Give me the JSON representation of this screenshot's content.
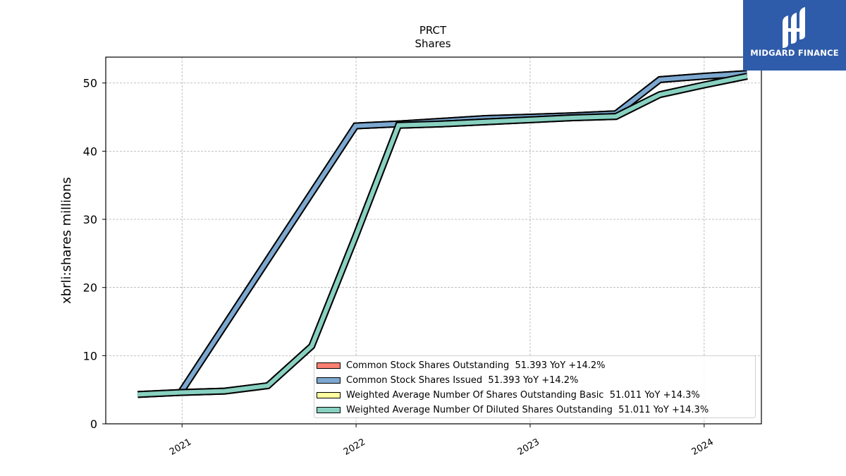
{
  "brand": {
    "name": "MIDGARD FINANCE",
    "color": "#2f5caa",
    "logo_icon": "midgard-logo-icon"
  },
  "chart_data": {
    "type": "line",
    "title": "PRCT",
    "subtitle": "Shares",
    "ylabel": "xbrli:shares millions",
    "xlabel": "",
    "x_ticks": [
      "2021",
      "2022",
      "2023",
      "2024"
    ],
    "y_ticks": [
      "0",
      "10",
      "20",
      "30",
      "40",
      "50"
    ],
    "ylim": [
      0,
      53.8
    ],
    "xlim": [
      "2020-07-25",
      "2024-04-30"
    ],
    "grid": true,
    "legend_position": "lower-right",
    "series": [
      {
        "name": "Common Stock Shares Outstanding",
        "legend": "Common Stock Shares Outstanding  51.393 YoY +14.2%",
        "color": "#fa8072",
        "x": [
          "2020-12-31",
          "2021-12-31",
          "2022-03-31",
          "2022-06-30",
          "2022-09-30",
          "2022-12-31",
          "2023-03-31",
          "2023-06-30",
          "2023-09-30",
          "2023-12-31",
          "2024-03-31"
        ],
        "values": [
          4.8,
          43.7,
          44.0,
          44.4,
          44.8,
          45.0,
          45.2,
          45.5,
          50.5,
          51.0,
          51.4
        ]
      },
      {
        "name": "Common Stock Shares Issued",
        "legend": "Common Stock Shares Issued  51.393 YoY +14.2%",
        "color": "#7ca8d0",
        "x": [
          "2020-12-31",
          "2021-12-31",
          "2022-03-31",
          "2022-06-30",
          "2022-09-30",
          "2022-12-31",
          "2023-03-31",
          "2023-06-30",
          "2023-09-30",
          "2023-12-31",
          "2024-03-31"
        ],
        "values": [
          4.8,
          43.7,
          44.0,
          44.4,
          44.8,
          45.0,
          45.2,
          45.5,
          50.5,
          51.0,
          51.4
        ]
      },
      {
        "name": "Weighted Average Number Of Shares Outstanding Basic",
        "legend": "Weighted Average Number Of Shares Outstanding Basic  51.011 YoY +14.3%",
        "color": "#ffffa0",
        "x": [
          "2020-09-30",
          "2020-12-31",
          "2021-03-31",
          "2021-06-30",
          "2021-09-30",
          "2021-12-31",
          "2022-03-31",
          "2022-06-30",
          "2022-09-30",
          "2022-12-31",
          "2023-03-31",
          "2023-06-30",
          "2023-09-30",
          "2023-12-31",
          "2024-03-31"
        ],
        "values": [
          4.3,
          4.6,
          4.8,
          5.6,
          11.4,
          27.5,
          43.8,
          44.0,
          44.3,
          44.6,
          44.9,
          45.1,
          48.3,
          49.7,
          51.0
        ]
      },
      {
        "name": "Weighted Average Number Of Diluted Shares Outstanding",
        "legend": "Weighted Average Number Of Diluted Shares Outstanding  51.011 YoY +14.3%",
        "color": "#88d0c0",
        "x": [
          "2020-09-30",
          "2020-12-31",
          "2021-03-31",
          "2021-06-30",
          "2021-09-30",
          "2021-12-31",
          "2022-03-31",
          "2022-06-30",
          "2022-09-30",
          "2022-12-31",
          "2023-03-31",
          "2023-06-30",
          "2023-09-30",
          "2023-12-31",
          "2024-03-31"
        ],
        "values": [
          4.3,
          4.6,
          4.8,
          5.6,
          11.4,
          27.5,
          43.8,
          44.0,
          44.3,
          44.6,
          44.9,
          45.1,
          48.3,
          49.7,
          51.0
        ]
      }
    ]
  }
}
